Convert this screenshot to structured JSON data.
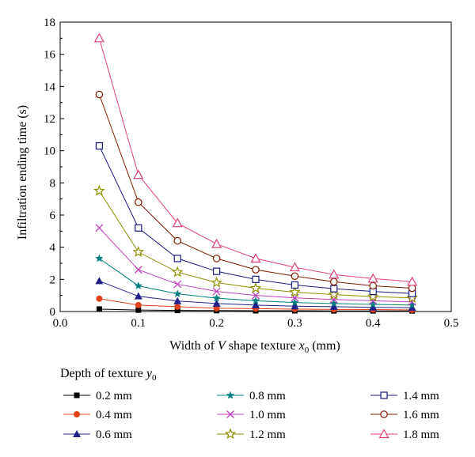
{
  "chart_data": {
    "type": "line",
    "xlabel": "Width of V shape texture x0 (mm)",
    "xlabel_parts": {
      "pre": "Width of ",
      "v": "V",
      "mid": " shape texture ",
      "var": "x",
      "sub": "0",
      "post": " (mm)"
    },
    "ylabel": "Infiltration ending time (s)",
    "xlim": [
      0.0,
      0.5
    ],
    "ylim": [
      0,
      18
    ],
    "xticks": [
      0.0,
      0.1,
      0.2,
      0.3,
      0.4,
      0.5
    ],
    "xtick_labels": [
      "0.0",
      "0.1",
      "0.2",
      "0.3",
      "0.4",
      "0.5"
    ],
    "yticks": [
      0,
      2,
      4,
      6,
      8,
      10,
      12,
      14,
      16,
      18
    ],
    "ytick_labels": [
      "0",
      "2",
      "4",
      "6",
      "8",
      "10",
      "12",
      "14",
      "16",
      "18"
    ],
    "grid": false,
    "legend_title": "Depth of texture y0",
    "legend_title_parts": {
      "pre": "Depth of texture ",
      "var": "y",
      "sub": "0"
    },
    "legend_placement": "bottom",
    "x": [
      0.05,
      0.1,
      0.15,
      0.2,
      0.25,
      0.3,
      0.35,
      0.4,
      0.45
    ],
    "series": [
      {
        "name": "0.2 mm",
        "marker": "square-filled",
        "color": "#000000",
        "values": [
          0.15,
          0.09,
          0.07,
          0.06,
          0.05,
          0.05,
          0.04,
          0.04,
          0.04
        ]
      },
      {
        "name": "0.4 mm",
        "marker": "circle-filled",
        "color": "#e0401a",
        "values": [
          0.8,
          0.4,
          0.3,
          0.2,
          0.18,
          0.15,
          0.13,
          0.12,
          0.1
        ]
      },
      {
        "name": "0.6 mm",
        "marker": "triangle-filled",
        "color": "#20208a",
        "values": [
          1.9,
          0.95,
          0.65,
          0.5,
          0.4,
          0.33,
          0.3,
          0.26,
          0.24
        ]
      },
      {
        "name": "0.8 mm",
        "marker": "star-filled",
        "color": "#007f7f",
        "values": [
          3.3,
          1.6,
          1.1,
          0.83,
          0.67,
          0.56,
          0.5,
          0.44,
          0.4
        ]
      },
      {
        "name": "1.0 mm",
        "marker": "cross",
        "color": "#c040c0",
        "values": [
          5.2,
          2.6,
          1.7,
          1.25,
          1.0,
          0.85,
          0.75,
          0.67,
          0.6
        ]
      },
      {
        "name": "1.2 mm",
        "marker": "star-open",
        "color": "#8f8f00",
        "values": [
          7.5,
          3.7,
          2.45,
          1.8,
          1.45,
          1.2,
          1.05,
          0.93,
          0.85
        ]
      },
      {
        "name": "1.4 mm",
        "marker": "square-open",
        "color": "#1a1a80",
        "values": [
          10.3,
          5.2,
          3.3,
          2.5,
          2.0,
          1.65,
          1.42,
          1.25,
          1.12
        ]
      },
      {
        "name": "1.6 mm",
        "marker": "circle-open",
        "color": "#801a00",
        "values": [
          13.5,
          6.8,
          4.4,
          3.3,
          2.6,
          2.2,
          1.85,
          1.6,
          1.45
        ]
      },
      {
        "name": "1.8 mm",
        "marker": "triangle-open",
        "color": "#e0407a",
        "values": [
          17.0,
          8.5,
          5.5,
          4.2,
          3.3,
          2.75,
          2.3,
          2.05,
          1.85
        ]
      }
    ]
  }
}
